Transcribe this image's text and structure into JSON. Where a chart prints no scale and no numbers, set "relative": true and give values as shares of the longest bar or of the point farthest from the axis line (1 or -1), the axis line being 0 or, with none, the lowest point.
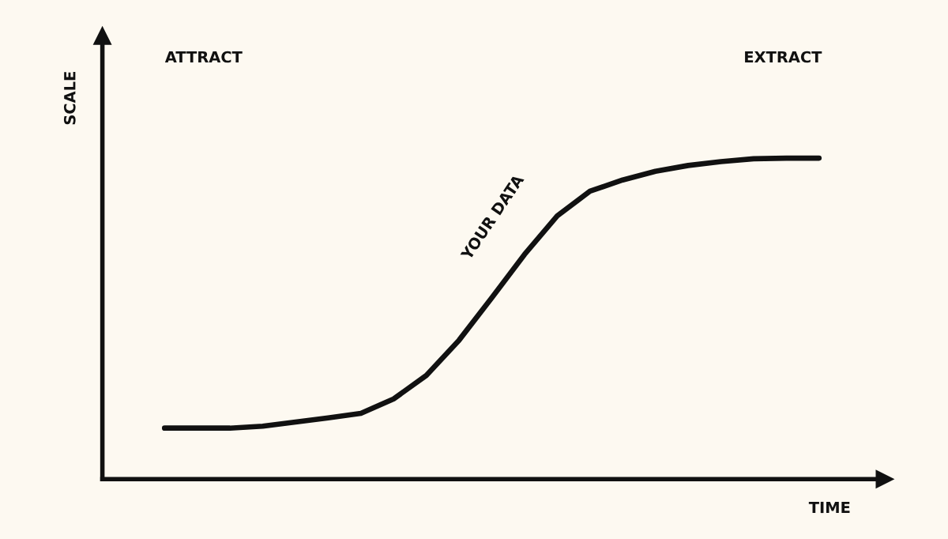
{
  "chart_data": {
    "type": "line",
    "relative": true,
    "xlabel": "TIME",
    "annotations": [
      "ATTRACT",
      "EXTRACT",
      "YOUR DATA",
      "SCALE"
    ],
    "categories": [
      null,
      null,
      null,
      null,
      null,
      null,
      null,
      null,
      null,
      null,
      null,
      null,
      null,
      null,
      null,
      null,
      null,
      null,
      null,
      null,
      null
    ],
    "series": [
      {
        "color": "#111111",
        "values": [
          0.159,
          0.159,
          0.159,
          0.165,
          0.178,
          0.191,
          0.205,
          0.25,
          0.323,
          0.433,
          0.565,
          0.7,
          0.82,
          0.897,
          0.932,
          0.959,
          0.977,
          0.989,
          0.998,
          1,
          1
        ]
      }
    ]
  }
}
